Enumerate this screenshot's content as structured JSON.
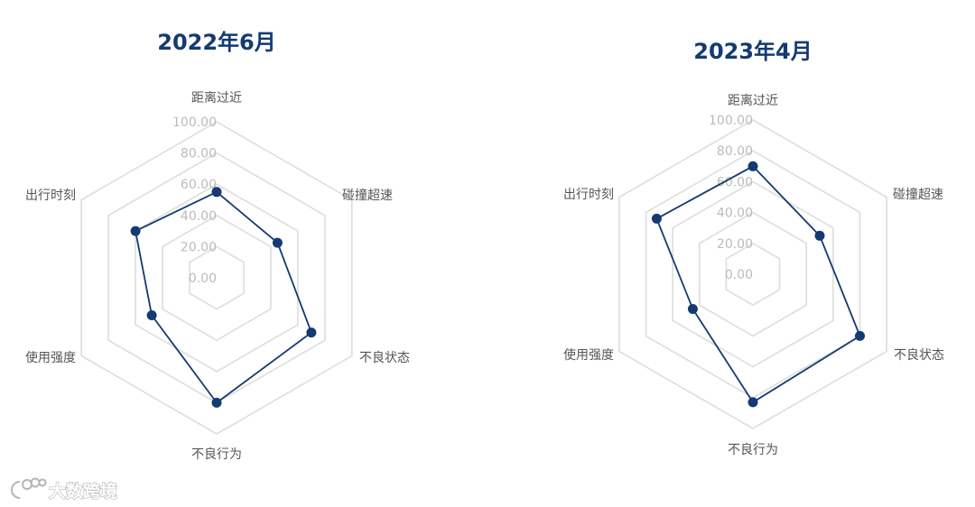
{
  "chart_data": [
    {
      "type": "radar",
      "title": "2022年6月",
      "axes": [
        "距离过近",
        "碰撞超速",
        "不良状态",
        "不良行为",
        "使用强度",
        "出行时刻"
      ],
      "ticks": [
        "0.00",
        "20.00",
        "40.00",
        "60.00",
        "80.00",
        "100.00"
      ],
      "range": [
        0,
        100
      ],
      "series": [
        {
          "values": [
            55,
            45,
            70,
            80,
            48,
            60
          ]
        }
      ]
    },
    {
      "type": "radar",
      "title": "2023年4月",
      "axes": [
        "距离过近",
        "碰撞超速",
        "不良状态",
        "不良行为",
        "使用强度",
        "出行时刻"
      ],
      "ticks": [
        "0.00",
        "20.00",
        "40.00",
        "60.00",
        "80.00",
        "100.00"
      ],
      "range": [
        0,
        100
      ],
      "series": [
        {
          "values": [
            70,
            50,
            80,
            83,
            45,
            72
          ]
        }
      ]
    }
  ],
  "watermark": {
    "text": "大数跨境",
    "icon": "cloud-logo-icon"
  },
  "colors": {
    "series": "#143a72",
    "grid": "#dddddd",
    "tick": "#bbbbbb",
    "title": "#143a72"
  }
}
